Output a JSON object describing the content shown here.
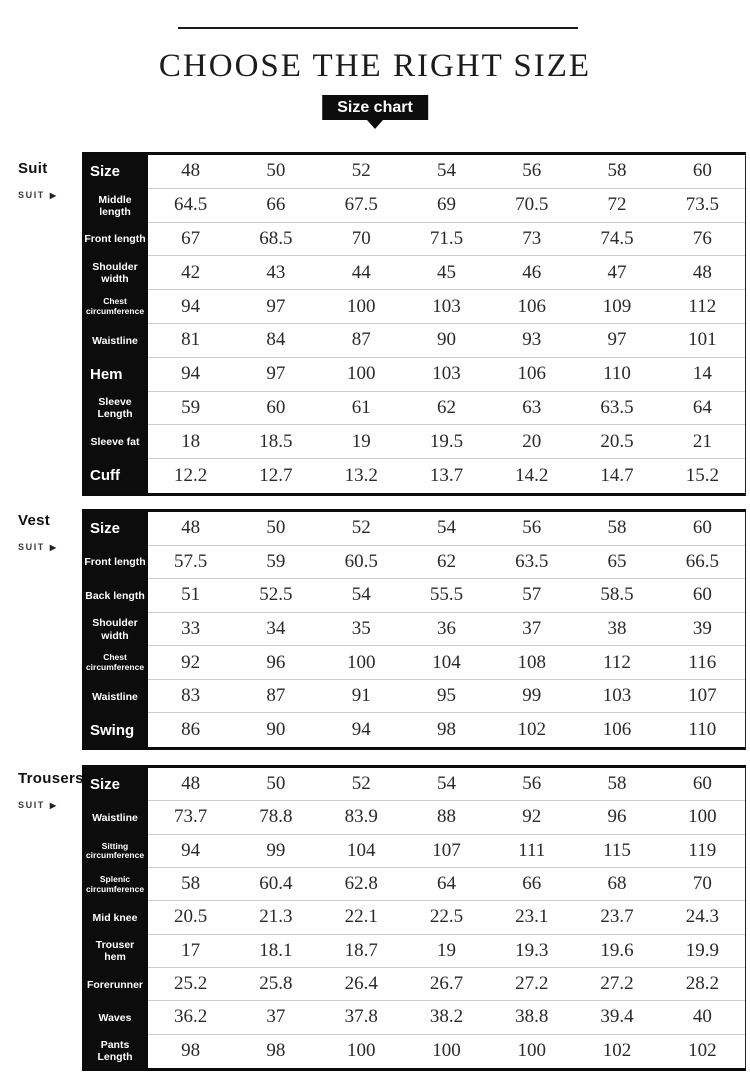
{
  "page": {
    "title": "CHOOSE THE RIGHT SIZE",
    "badge_label": "Size chart",
    "colors": {
      "accent": "#0d0d0d",
      "text": "#2a2a2a",
      "row_line": "#cccccc"
    }
  },
  "sections": [
    {
      "id": "suit",
      "label": "Suit",
      "sublabel": "SUIT",
      "arrow": "▶",
      "rows": [
        {
          "header": "Size",
          "style": "lg",
          "values": [
            "48",
            "50",
            "52",
            "54",
            "56",
            "58",
            "60"
          ]
        },
        {
          "header": "Middle length",
          "style": "md",
          "values": [
            "64.5",
            "66",
            "67.5",
            "69",
            "70.5",
            "72",
            "73.5"
          ]
        },
        {
          "header": "Front length",
          "style": "md",
          "values": [
            "67",
            "68.5",
            "70",
            "71.5",
            "73",
            "74.5",
            "76"
          ]
        },
        {
          "header": "Shoulder width",
          "style": "md",
          "values": [
            "42",
            "43",
            "44",
            "45",
            "46",
            "47",
            "48"
          ]
        },
        {
          "header": "Chest circumference",
          "style": "sm",
          "values": [
            "94",
            "97",
            "100",
            "103",
            "106",
            "109",
            "112"
          ]
        },
        {
          "header": "Waistline",
          "style": "md",
          "values": [
            "81",
            "84",
            "87",
            "90",
            "93",
            "97",
            "101"
          ]
        },
        {
          "header": "Hem",
          "style": "lg",
          "values": [
            "94",
            "97",
            "100",
            "103",
            "106",
            "110",
            "14"
          ]
        },
        {
          "header": "Sleeve Length",
          "style": "md",
          "values": [
            "59",
            "60",
            "61",
            "62",
            "63",
            "63.5",
            "64"
          ]
        },
        {
          "header": "Sleeve fat",
          "style": "md",
          "values": [
            "18",
            "18.5",
            "19",
            "19.5",
            "20",
            "20.5",
            "21"
          ]
        },
        {
          "header": "Cuff",
          "style": "lg",
          "values": [
            "12.2",
            "12.7",
            "13.2",
            "13.7",
            "14.2",
            "14.7",
            "15.2"
          ]
        }
      ]
    },
    {
      "id": "vest",
      "label": "Vest",
      "sublabel": "SUIT",
      "arrow": "▶",
      "rows": [
        {
          "header": "Size",
          "style": "lg",
          "values": [
            "48",
            "50",
            "52",
            "54",
            "56",
            "58",
            "60"
          ]
        },
        {
          "header": "Front length",
          "style": "md",
          "values": [
            "57.5",
            "59",
            "60.5",
            "62",
            "63.5",
            "65",
            "66.5"
          ]
        },
        {
          "header": "Back length",
          "style": "md",
          "values": [
            "51",
            "52.5",
            "54",
            "55.5",
            "57",
            "58.5",
            "60"
          ]
        },
        {
          "header": "Shoulder width",
          "style": "md",
          "values": [
            "33",
            "34",
            "35",
            "36",
            "37",
            "38",
            "39"
          ]
        },
        {
          "header": "Chest circumference",
          "style": "sm",
          "values": [
            "92",
            "96",
            "100",
            "104",
            "108",
            "112",
            "116"
          ]
        },
        {
          "header": "Waistline",
          "style": "md",
          "values": [
            "83",
            "87",
            "91",
            "95",
            "99",
            "103",
            "107"
          ]
        },
        {
          "header": "Swing",
          "style": "lg",
          "values": [
            "86",
            "90",
            "94",
            "98",
            "102",
            "106",
            "110"
          ]
        }
      ]
    },
    {
      "id": "trousers",
      "label": "Trousers",
      "sublabel": "SUIT",
      "arrow": "▶",
      "rows": [
        {
          "header": "Size",
          "style": "lg",
          "values": [
            "48",
            "50",
            "52",
            "54",
            "56",
            "58",
            "60"
          ]
        },
        {
          "header": "Waistline",
          "style": "md",
          "values": [
            "73.7",
            "78.8",
            "83.9",
            "88",
            "92",
            "96",
            "100"
          ]
        },
        {
          "header": "Sitting circumference",
          "style": "sm",
          "values": [
            "94",
            "99",
            "104",
            "107",
            "111",
            "115",
            "119"
          ]
        },
        {
          "header": "Splenic circumference",
          "style": "sm",
          "values": [
            "58",
            "60.4",
            "62.8",
            "64",
            "66",
            "68",
            "70"
          ]
        },
        {
          "header": "Mid knee",
          "style": "md",
          "values": [
            "20.5",
            "21.3",
            "22.1",
            "22.5",
            "23.1",
            "23.7",
            "24.3"
          ]
        },
        {
          "header": "Trouser hem",
          "style": "md",
          "values": [
            "17",
            "18.1",
            "18.7",
            "19",
            "19.3",
            "19.6",
            "19.9"
          ]
        },
        {
          "header": "Forerunner",
          "style": "md",
          "values": [
            "25.2",
            "25.8",
            "26.4",
            "26.7",
            "27.2",
            "27.2",
            "28.2"
          ]
        },
        {
          "header": "Waves",
          "style": "md",
          "values": [
            "36.2",
            "37",
            "37.8",
            "38.2",
            "38.8",
            "39.4",
            "40"
          ]
        },
        {
          "header": "Pants Length",
          "style": "md",
          "values": [
            "98",
            "98",
            "100",
            "100",
            "100",
            "102",
            "102"
          ]
        }
      ]
    }
  ]
}
